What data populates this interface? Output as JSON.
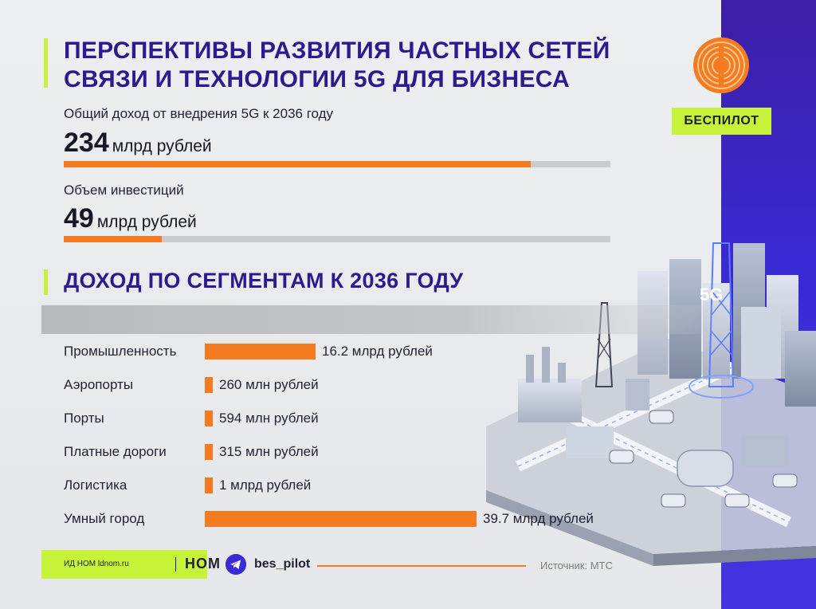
{
  "header": {
    "title_line1": "ПЕРСПЕКТИВЫ РАЗВИТИЯ ЧАСТНЫХ СЕТЕЙ",
    "title_line2": "СВЯЗИ И ТЕХНОЛОГИИ 5G ДЛЯ БИЗНЕСА"
  },
  "stats": {
    "income": {
      "label": "Общий доход от внедрения 5G к 2036 году",
      "value": "234",
      "unit": "млрд рублей"
    },
    "investment": {
      "label": "Объем инвестиций",
      "value": "49",
      "unit": "млрд рублей"
    }
  },
  "section": {
    "title": "ДОХОД ПО СЕГМЕНТАМ К 2036 ГОДУ"
  },
  "brand": {
    "badge": "БЕСПИЛОТ",
    "footer_small": "ИД НОМ ldnom.ru",
    "footer_brand": "НОМ",
    "handle": "bes_pilot",
    "source": "Источник: МТС",
    "city_badge": "5G"
  },
  "colors": {
    "accent": "#f47b1f",
    "title": "#2a1c8f",
    "lime": "#c6f23a",
    "strip": "#3a2ad6",
    "track": "#c9cbcf"
  },
  "icons": [
    "telegram-icon",
    "brand-circle-icon",
    "city-illustration"
  ],
  "chart_data": [
    {
      "type": "bar",
      "orientation": "horizontal",
      "categories": [
        "Общий доход от внедрения 5G к 2036 году",
        "Объем инвестиций"
      ],
      "values": [
        234,
        49
      ],
      "unit": "млрд рублей"
    },
    {
      "type": "bar",
      "orientation": "horizontal",
      "title": "ДОХОД ПО СЕГМЕНТАМ К 2036 ГОДУ",
      "categories": [
        "Промышленность",
        "Аэропорты",
        "Порты",
        "Платные дороги",
        "Логистика",
        "Умный город"
      ],
      "values_mlrd": [
        16.2,
        0.26,
        0.594,
        0.315,
        1,
        39.7
      ],
      "value_labels": [
        "16.2 млрд рублей",
        "260 млн рублей",
        "594 млн рублей",
        "315 млн рублей",
        "1 млрд рублей",
        "39.7 млрд рублей"
      ]
    }
  ]
}
